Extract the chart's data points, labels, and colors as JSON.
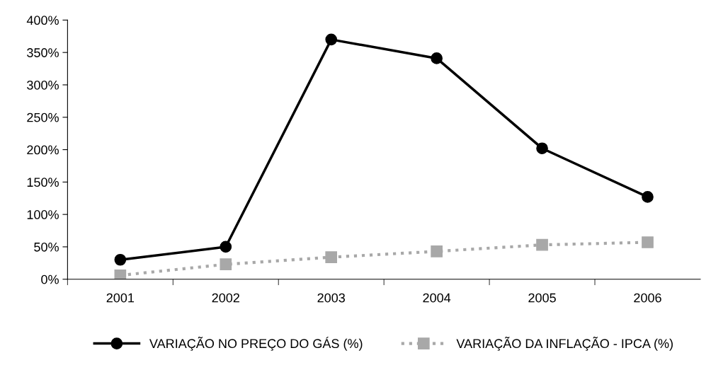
{
  "chart_data": {
    "type": "line",
    "categories": [
      "2001",
      "2002",
      "2003",
      "2004",
      "2005",
      "2006"
    ],
    "series": [
      {
        "name": "VARIAÇÃO NO PREÇO DO GÁS (%)",
        "color": "#000000",
        "values": [
          30,
          50,
          370,
          341,
          202,
          127
        ],
        "marker": "circle",
        "line_style": "solid"
      },
      {
        "name": "VARIAÇÃO DA INFLAÇÃO - IPCA (%)",
        "color": "#a8a8a8",
        "values": [
          6,
          23,
          34,
          43,
          53,
          57
        ],
        "marker": "square",
        "line_style": "dotted"
      }
    ],
    "ylim": [
      0,
      400
    ],
    "yticks": [
      {
        "value": 0,
        "label": "0%"
      },
      {
        "value": 50,
        "label": "50%"
      },
      {
        "value": 100,
        "label": "100%"
      },
      {
        "value": 150,
        "label": "150%"
      },
      {
        "value": 200,
        "label": "200%"
      },
      {
        "value": 250,
        "label": "250%"
      },
      {
        "value": 300,
        "label": "300%"
      },
      {
        "value": 350,
        "label": "350%"
      },
      {
        "value": 400,
        "label": "400%"
      }
    ],
    "grid": false,
    "legend": "bottom"
  }
}
